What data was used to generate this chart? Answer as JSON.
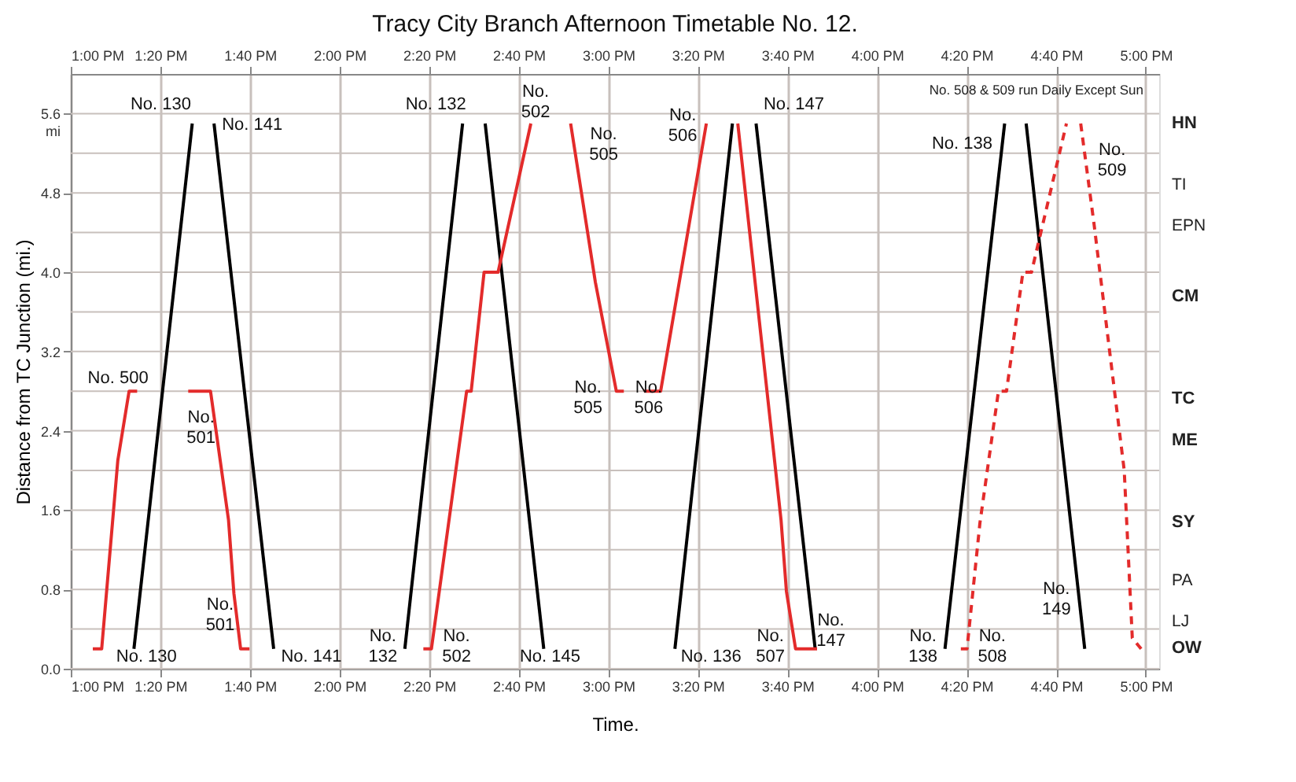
{
  "chart_data": {
    "type": "line",
    "title": "Tracy City Branch Afternoon Timetable No. 12.",
    "xlabel": "Time.",
    "ylabel": "Distance from TC Junction (mi.)",
    "xlim": [
      13.0,
      17.05
    ],
    "ylim": [
      0,
      6
    ],
    "xticks": [
      {
        "value": 13.0,
        "label": "1:00 PM"
      },
      {
        "value": 13.3333,
        "label": "1:20 PM"
      },
      {
        "value": 13.6667,
        "label": "1:40 PM"
      },
      {
        "value": 14.0,
        "label": "2:00 PM"
      },
      {
        "value": 14.3333,
        "label": "2:20 PM"
      },
      {
        "value": 14.6667,
        "label": "2:40 PM"
      },
      {
        "value": 15.0,
        "label": "3:00 PM"
      },
      {
        "value": 15.3333,
        "label": "3:20 PM"
      },
      {
        "value": 15.6667,
        "label": "3:40 PM"
      },
      {
        "value": 16.0,
        "label": "4:00 PM"
      },
      {
        "value": 16.3333,
        "label": "4:20 PM"
      },
      {
        "value": 16.6667,
        "label": "4:40 PM"
      },
      {
        "value": 17.0,
        "label": "5:00 PM"
      }
    ],
    "x2lim": [
      13.0,
      17.05
    ],
    "x2ticks": [
      {
        "value": 13.0,
        "label": "1:00 PM"
      },
      {
        "value": 13.3333,
        "label": "1:20 PM"
      },
      {
        "value": 13.6667,
        "label": "1:40 PM"
      },
      {
        "value": 14.0,
        "label": "2:00 PM"
      },
      {
        "value": 14.3333,
        "label": "2:20 PM"
      },
      {
        "value": 14.6667,
        "label": "2:40 PM"
      },
      {
        "value": 15.0,
        "label": "3:00 PM"
      },
      {
        "value": 15.3333,
        "label": "3:20 PM"
      },
      {
        "value": 15.6667,
        "label": "3:40 PM"
      },
      {
        "value": 16.0,
        "label": "4:00 PM"
      },
      {
        "value": 16.3333,
        "label": "4:20 PM"
      },
      {
        "value": 16.6667,
        "label": "4:40 PM"
      },
      {
        "value": 17.0,
        "label": "5:00 PM"
      }
    ],
    "yticks": [
      {
        "value": 0,
        "label": "0.0"
      },
      {
        "value": 0.4,
        "label": null
      },
      {
        "value": 0.8,
        "label": "0.8"
      },
      {
        "value": 1.2,
        "label": null
      },
      {
        "value": 1.6,
        "label": "1.6"
      },
      {
        "value": 2.0,
        "label": null
      },
      {
        "value": 2.4,
        "label": "2.4"
      },
      {
        "value": 2.8,
        "label": null
      },
      {
        "value": 3.2,
        "label": "3.2"
      },
      {
        "value": 3.6,
        "label": null
      },
      {
        "value": 4.0,
        "label": "4.0"
      },
      {
        "value": 4.4,
        "label": null
      },
      {
        "value": 4.8,
        "label": "4.8"
      },
      {
        "value": 5.2,
        "label": null
      },
      {
        "value": 5.6,
        "label": "5.6 mi"
      }
    ],
    "grid": true,
    "marker": "none",
    "series": [
      {
        "color": "#e32b2b",
        "line_style": "solid",
        "x": [
          13.082,
          13.115,
          13.175,
          13.217,
          13.247
        ],
        "values": [
          0.2,
          0.2,
          2.1,
          2.8,
          2.8
        ]
      },
      {
        "color": "#000000",
        "line_style": "solid",
        "x": [
          13.235,
          13.452
        ],
        "values": [
          0.2,
          5.5
        ]
      },
      {
        "color": "#000000",
        "line_style": "solid",
        "x": [
          13.533,
          13.755
        ],
        "values": [
          5.5,
          0.2
        ]
      },
      {
        "color": "#e32b2b",
        "line_style": "solid",
        "x": [
          13.437,
          13.52,
          13.587,
          13.607,
          13.632,
          13.665
        ],
        "values": [
          2.8,
          2.8,
          1.5,
          0.76,
          0.2,
          0.2
        ]
      },
      {
        "color": "#000000",
        "line_style": "solid",
        "x": [
          14.243,
          14.458
        ],
        "values": [
          0.2,
          5.5
        ]
      },
      {
        "color": "#000000",
        "line_style": "solid",
        "x": [
          14.542,
          14.76
        ],
        "values": [
          5.5,
          0.2
        ]
      },
      {
        "color": "#e32b2b",
        "line_style": "solid",
        "x": [
          14.312,
          14.342,
          14.473,
          14.49,
          14.538,
          14.59,
          14.712
        ],
        "values": [
          0.2,
          0.2,
          2.8,
          2.8,
          4.0,
          4.0,
          5.5
        ]
      },
      {
        "color": "#e32b2b",
        "line_style": "solid",
        "x": [
          14.86,
          14.952,
          15.03,
          15.058
        ],
        "values": [
          5.5,
          3.9,
          2.8,
          2.8
        ]
      },
      {
        "color": "#e32b2b",
        "line_style": "solid",
        "x": [
          15.133,
          15.195,
          15.365
        ],
        "values": [
          2.8,
          2.8,
          5.5
        ]
      },
      {
        "color": "#000000",
        "line_style": "solid",
        "x": [
          15.248,
          15.462
        ],
        "values": [
          0.2,
          5.5
        ]
      },
      {
        "color": "#000000",
        "line_style": "solid",
        "x": [
          15.55,
          15.77
        ],
        "values": [
          5.5,
          0.2
        ]
      },
      {
        "color": "#e32b2b",
        "line_style": "solid",
        "x": [
          15.482,
          15.643,
          15.663,
          15.697,
          15.777
        ],
        "values": [
          5.5,
          1.5,
          0.78,
          0.2,
          0.2
        ]
      },
      {
        "color": "#000000",
        "line_style": "solid",
        "x": [
          16.253,
          16.475
        ],
        "values": [
          0.2,
          5.5
        ]
      },
      {
        "color": "#000000",
        "line_style": "solid",
        "x": [
          16.555,
          16.773
        ],
        "values": [
          5.5,
          0.2
        ]
      },
      {
        "color": "#e32b2b",
        "line_style": "dashed",
        "x": [
          16.312,
          16.335,
          16.383,
          16.452,
          16.482,
          16.543,
          16.575,
          16.705
        ],
        "values": [
          0.2,
          0.2,
          1.47,
          2.8,
          2.8,
          4.0,
          4.0,
          5.5
        ]
      },
      {
        "color": "#e32b2b",
        "line_style": "dashed",
        "x": [
          16.758,
          16.807,
          16.92,
          16.95,
          16.983
        ],
        "values": [
          5.5,
          4.5,
          2.0,
          0.31,
          0.2
        ]
      }
    ],
    "annotations": [
      "No. 508 & 509 run Daily Except Sun",
      {
        "text": "No. 130",
        "x": 13.452,
        "y": 5.5
      },
      {
        "text": "No. 141",
        "x": 13.533,
        "y": 5.5
      },
      {
        "text": "No. 500",
        "x": 13.217,
        "y": 2.8
      },
      {
        "text": "No.\n501",
        "x": 13.52,
        "y": 2.8
      },
      {
        "text": "No.\n501",
        "x": 13.632,
        "y": 0.2
      },
      {
        "text": "No. 130",
        "x": 13.235,
        "y": 0.2
      },
      {
        "text": "No. 141",
        "x": 13.755,
        "y": 0.2
      },
      {
        "text": "No. 132",
        "x": 14.458,
        "y": 5.5
      },
      {
        "text": "No.\n502",
        "x": 14.712,
        "y": 5.5
      },
      {
        "text": "No.\n505",
        "x": 14.86,
        "y": 5.5
      },
      {
        "text": "No.\n505",
        "x": 15.03,
        "y": 2.8
      },
      {
        "text": "No.\n506",
        "x": 15.133,
        "y": 2.8
      },
      {
        "text": "No.\n506",
        "x": 15.365,
        "y": 5.5
      },
      {
        "text": "No. 147",
        "x": 15.55,
        "y": 5.5
      },
      {
        "text": "No.\n132",
        "x": 14.243,
        "y": 0.2
      },
      {
        "text": "No.\n502",
        "x": 14.342,
        "y": 0.2
      },
      {
        "text": "No. 145",
        "x": 14.76,
        "y": 0.2
      },
      {
        "text": "No. 136",
        "x": 15.248,
        "y": 0.2
      },
      {
        "text": "No.\n507",
        "x": 15.697,
        "y": 0.2
      },
      {
        "text": "No.\n147",
        "x": 15.77,
        "y": 0.2
      },
      {
        "text": "No. 138",
        "x": 16.475,
        "y": 5.5
      },
      {
        "text": "No.\n509",
        "x": 16.758,
        "y": 5.5
      },
      {
        "text": "No.\n149",
        "x": 16.773,
        "y": 0.2
      },
      {
        "text": "No.\n138",
        "x": 16.253,
        "y": 0.2
      },
      {
        "text": "No.\n508",
        "x": 16.312,
        "y": 0.2
      },
      "HN",
      "TI",
      "EPN",
      "CM",
      "TC",
      "ME",
      "SY",
      "PA",
      "LJ",
      "OW"
    ]
  }
}
